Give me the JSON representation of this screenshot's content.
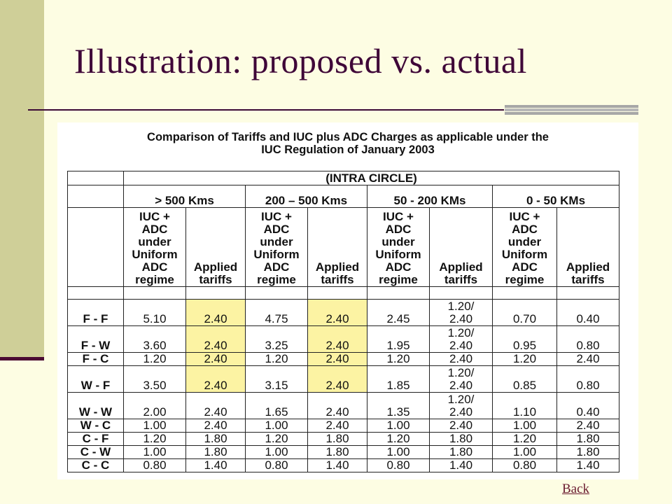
{
  "slide": {
    "title": "Illustration: proposed vs. actual",
    "back_link": "Back"
  },
  "figure": {
    "heading_line1": "Comparison of Tariffs and IUC plus ADC Charges as applicable under the",
    "heading_line2": "IUC Regulation of January 2003",
    "table": {
      "group_header": "(INTRA CIRCLE)",
      "ranges": [
        "> 500 Kms",
        "200 – 500 Kms",
        "50 - 200 KMs",
        "0 - 50 KMs"
      ],
      "sub_headers": {
        "iuc_line1": "IUC +",
        "iuc_line2": "ADC",
        "iuc_line3": "under",
        "iuc_line4": "Uniform",
        "iuc_line5": "ADC",
        "iuc_line6": "regime",
        "applied_line1": "Applied",
        "applied_line2": "tariffs"
      },
      "rows": [
        {
          "label": "F - F",
          "c1": "5.10",
          "c2": "2.40",
          "c3": "4.75",
          "c4": "2.40",
          "c5": "2.45",
          "c6a": "1.20/",
          "c6b": "2.40",
          "c7": "0.70",
          "c8": "0.40"
        },
        {
          "label": "F - W",
          "c1": "3.60",
          "c2": "2.40",
          "c3": "3.25",
          "c4": "2.40",
          "c5": "1.95",
          "c6a": "1.20/",
          "c6b": "2.40",
          "c7": "0.95",
          "c8": "0.80"
        },
        {
          "label": "F - C",
          "c1": "1.20",
          "c2": "2.40",
          "c3": "1.20",
          "c4": "2.40",
          "c5": "1.20",
          "c6a": "",
          "c6b": "2.40",
          "c7": "1.20",
          "c8": "2.40"
        },
        {
          "label": "W - F",
          "c1": "3.50",
          "c2": "2.40",
          "c3": "3.15",
          "c4": "2.40",
          "c5": "1.85",
          "c6a": "1.20/",
          "c6b": "2.40",
          "c7": "0.85",
          "c8": "0.80"
        },
        {
          "label": "W - W",
          "c1": "2.00",
          "c2": "2.40",
          "c3": "1.65",
          "c4": "2.40",
          "c5": "1.35",
          "c6a": "1.20/",
          "c6b": "2.40",
          "c7": "1.10",
          "c8": "0.40"
        },
        {
          "label": "W - C",
          "c1": "1.00",
          "c2": "2.40",
          "c3": "1.00",
          "c4": "2.40",
          "c5": "1.00",
          "c6a": "",
          "c6b": "2.40",
          "c7": "1.00",
          "c8": "2.40"
        },
        {
          "label": "C - F",
          "c1": "1.20",
          "c2": "1.80",
          "c3": "1.20",
          "c4": "1.80",
          "c5": "1.20",
          "c6a": "",
          "c6b": "1.80",
          "c7": "1.20",
          "c8": "1.80"
        },
        {
          "label": "C - W",
          "c1": "1.00",
          "c2": "1.80",
          "c3": "1.00",
          "c4": "1.80",
          "c5": "1.00",
          "c6a": "",
          "c6b": "1.80",
          "c7": "1.00",
          "c8": "1.80"
        },
        {
          "label": "C - C",
          "c1": "0.80",
          "c2": "1.40",
          "c3": "0.80",
          "c4": "1.40",
          "c5": "0.80",
          "c6a": "",
          "c6b": "1.40",
          "c7": "0.80",
          "c8": "1.40"
        }
      ]
    }
  },
  "colors": {
    "background": "#fdfde3",
    "sidebar": "#cfcf98",
    "title": "#3f0738",
    "highlight": "#fcf3a3"
  }
}
